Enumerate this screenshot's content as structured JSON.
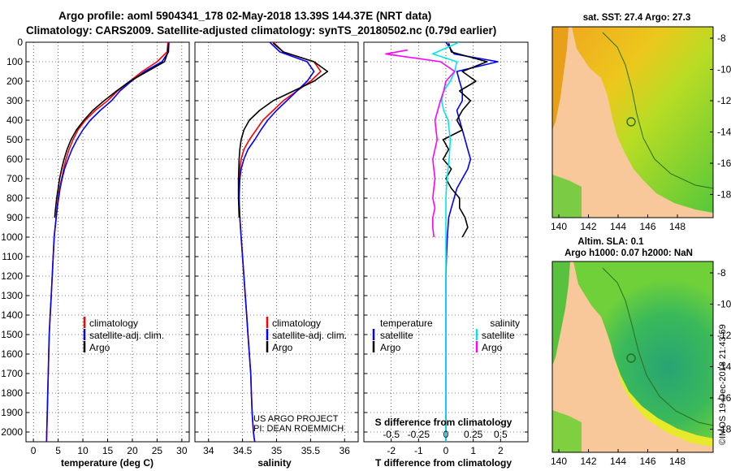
{
  "header": {
    "line1": "Argo profile: aoml 5904341_178 02-May-2018 13.39S 144.37E (NRT data)",
    "line2": "Climatology: CARS2009. Satellite-adjusted climatology: synTS_20180502.nc (0.79d earlier)"
  },
  "credits": {
    "project": "US ARGO PROJECT",
    "pi": "PI: DEAN ROEMMICH",
    "imos": "©IMOS 19-Dec-2018 21:43:59"
  },
  "colors": {
    "climatology": "#ff0000",
    "satellite": "#0000ff",
    "argo": "#000000",
    "sal_satellite": "#00e5ee",
    "sal_argo": "#ff00ff",
    "land": "#f9c89a",
    "coast": "#2a6e1c"
  },
  "depth_axis": {
    "min": 0,
    "max": 2050,
    "ticks": [
      0,
      100,
      200,
      300,
      400,
      500,
      600,
      700,
      800,
      900,
      1000,
      1100,
      1200,
      1300,
      1400,
      1500,
      1600,
      1700,
      1800,
      1900,
      2000
    ]
  },
  "chart_data": [
    {
      "id": "temperature",
      "type": "line",
      "xlabel": "temperature (deg C)",
      "ylabel": "depth",
      "xlim": [
        -1.5,
        31.5
      ],
      "ylim": [
        2050,
        0
      ],
      "xticks": [
        0,
        5,
        10,
        15,
        20,
        25,
        30
      ],
      "legend": [
        "climatology",
        "satellite-adj. clim.",
        "Argo"
      ],
      "legend_position": "bottom-right",
      "series": [
        {
          "name": "climatology",
          "color": "#ff0000",
          "x": [
            27.2,
            27.0,
            25.0,
            22.0,
            19.5,
            17.0,
            15.0,
            12.5,
            10.5,
            9.0,
            8.0,
            7.2,
            6.6,
            6.1,
            5.7,
            5.3,
            5.0,
            4.8,
            4.6,
            4.4,
            4.2,
            4.0,
            3.8,
            3.6,
            3.4,
            3.2,
            3.1,
            3.0,
            2.9,
            2.8,
            2.7,
            2.65
          ],
          "y": [
            0,
            50,
            100,
            150,
            200,
            250,
            300,
            350,
            400,
            450,
            500,
            550,
            600,
            650,
            700,
            750,
            800,
            850,
            900,
            950,
            1000,
            1100,
            1200,
            1300,
            1400,
            1500,
            1600,
            1700,
            1800,
            1900,
            2000,
            2050
          ]
        },
        {
          "name": "satellite-adj. clim.",
          "color": "#0000ff",
          "x": [
            27.4,
            27.3,
            26.0,
            22.5,
            19.8,
            17.5,
            15.8,
            13.5,
            11.5,
            10.0,
            8.8,
            7.8,
            7.0,
            6.3,
            5.8,
            5.4,
            5.1,
            4.8,
            4.6,
            4.4,
            4.2,
            4.0,
            3.8,
            3.6,
            3.4,
            3.2,
            3.1,
            3.0,
            2.9,
            2.8,
            2.7,
            2.65
          ],
          "y": [
            0,
            50,
            100,
            150,
            200,
            250,
            300,
            350,
            400,
            450,
            500,
            550,
            600,
            650,
            700,
            750,
            800,
            850,
            900,
            950,
            1000,
            1100,
            1200,
            1300,
            1400,
            1500,
            1600,
            1700,
            1800,
            1900,
            2000,
            2050
          ]
        },
        {
          "name": "Argo",
          "color": "#000000",
          "x": [
            27.3,
            27.2,
            26.5,
            23.0,
            19.5,
            16.8,
            14.3,
            12.0,
            10.2,
            8.7,
            7.6,
            6.8,
            6.2,
            5.7,
            5.3,
            5.0,
            4.7,
            4.5,
            4.3
          ],
          "y": [
            5,
            50,
            100,
            150,
            200,
            250,
            300,
            350,
            400,
            450,
            500,
            550,
            600,
            650,
            700,
            750,
            800,
            850,
            900
          ]
        }
      ]
    },
    {
      "id": "salinity",
      "type": "line",
      "xlabel": "salinity",
      "ylabel": "depth",
      "xlim": [
        33.8,
        36.2
      ],
      "ylim": [
        2050,
        0
      ],
      "xticks": [
        34,
        34.5,
        35,
        35.5,
        36
      ],
      "xtick_labels": [
        "34",
        "34.5",
        "35",
        "35.5",
        "36"
      ],
      "legend": [
        "climatology",
        "satellite-adj. clim.",
        "Argo"
      ],
      "legend_position": "bottom-right",
      "series": [
        {
          "name": "climatology",
          "color": "#ff0000",
          "x": [
            34.95,
            35.1,
            35.55,
            35.65,
            35.5,
            35.3,
            35.1,
            34.95,
            34.8,
            34.7,
            34.6,
            34.52,
            34.48,
            34.46,
            34.45,
            34.45,
            34.46,
            34.48,
            34.5,
            34.52,
            34.54,
            34.56,
            34.58,
            34.6,
            34.62,
            34.63,
            34.64,
            34.65,
            34.66,
            34.67,
            34.68
          ],
          "y": [
            0,
            50,
            100,
            150,
            200,
            250,
            300,
            350,
            400,
            450,
            500,
            550,
            600,
            650,
            700,
            800,
            900,
            1000,
            1100,
            1200,
            1300,
            1400,
            1500,
            1600,
            1700,
            1800,
            1900,
            1950,
            2000,
            2030,
            2050
          ]
        },
        {
          "name": "satellite-adj. clim.",
          "color": "#0000ff",
          "x": [
            34.9,
            35.05,
            35.45,
            35.55,
            35.45,
            35.3,
            35.15,
            35.0,
            34.87,
            34.77,
            34.68,
            34.58,
            34.52,
            34.48,
            34.46,
            34.45,
            34.46,
            34.48,
            34.5,
            34.52,
            34.54,
            34.56,
            34.58,
            34.6,
            34.62,
            34.63,
            34.64,
            34.65,
            34.66,
            34.67,
            34.68
          ],
          "y": [
            0,
            50,
            100,
            150,
            200,
            250,
            300,
            350,
            400,
            450,
            500,
            550,
            600,
            650,
            700,
            800,
            900,
            1000,
            1100,
            1200,
            1300,
            1400,
            1500,
            1600,
            1700,
            1800,
            1900,
            1950,
            2000,
            2030,
            2050
          ]
        },
        {
          "name": "Argo",
          "color": "#000000",
          "x": [
            34.95,
            35.1,
            35.55,
            35.75,
            35.55,
            35.25,
            34.95,
            34.75,
            34.6,
            34.52,
            34.48,
            34.46,
            34.45,
            34.44,
            34.44,
            34.45
          ],
          "y": [
            5,
            50,
            100,
            150,
            200,
            250,
            300,
            350,
            400,
            450,
            500,
            550,
            600,
            700,
            800,
            900
          ]
        }
      ]
    },
    {
      "id": "difference",
      "type": "line",
      "xlabel": "T difference from climatology",
      "x2label": "S difference from climatology",
      "ylabel": "depth",
      "xlim": [
        -3,
        3
      ],
      "ylim": [
        2050,
        0
      ],
      "xticks": [
        -2,
        -1,
        0,
        1,
        2
      ],
      "x2ticks": [
        -0.5,
        -0.25,
        0,
        0.25,
        0.5
      ],
      "x2tick_labels": [
        "-0.5",
        "-0.25",
        "0",
        "0.25",
        "0.5"
      ],
      "legend_left_title": "temperature",
      "legend_right_title": "salinity",
      "legend_left": [
        "satellite",
        "Argo"
      ],
      "legend_right": [
        "satellite",
        "Argo"
      ],
      "legend_position": "bottom",
      "series": [
        {
          "name": "T satellite",
          "color": "#0000ff",
          "x": [
            0.0,
            0.3,
            1.9,
            0.4,
            0.5,
            0.6,
            0.6,
            0.4,
            0.5,
            0.6,
            0.7,
            0.8,
            0.9,
            0.8,
            0.6,
            0.4,
            0.3,
            0.2,
            0.1,
            0.05,
            0.02,
            0.0,
            0.0
          ],
          "y": [
            0,
            60,
            100,
            150,
            200,
            250,
            300,
            350,
            400,
            450,
            500,
            550,
            600,
            650,
            700,
            750,
            800,
            850,
            900,
            1000,
            1100,
            1200,
            2050
          ]
        },
        {
          "name": "T Argo",
          "color": "#000000",
          "x": [
            0.1,
            0.2,
            1.5,
            0.6,
            1.1,
            0.5,
            0.9,
            0.6,
            0.4,
            0.6,
            -0.1,
            0.1,
            -0.1,
            0.2,
            0.0,
            0.2,
            0.5,
            0.5,
            0.7,
            0.8,
            0.6
          ],
          "y": [
            5,
            50,
            100,
            150,
            200,
            250,
            300,
            350,
            400,
            450,
            500,
            550,
            600,
            650,
            700,
            750,
            800,
            850,
            900,
            950,
            1000
          ]
        },
        {
          "name": "S satellite",
          "color": "#00e5ee",
          "x": [
            0.12,
            -0.12,
            0.1,
            0.08,
            0.04,
            -0.02,
            -0.04,
            -0.02,
            0.02,
            0.04,
            0.03,
            0.01,
            0.0,
            0.0,
            0.0,
            0.0,
            0.0,
            0.0
          ],
          "y": [
            0,
            60,
            100,
            150,
            200,
            250,
            300,
            350,
            400,
            500,
            600,
            700,
            800,
            900,
            1000,
            1200,
            1500,
            2050
          ]
        },
        {
          "name": "S Argo",
          "color": "#ff00ff",
          "x": [
            -0.35,
            -0.55,
            -0.05,
            0.08,
            0.0,
            -0.02,
            -0.05,
            -0.1,
            -0.08,
            -0.12,
            -0.1,
            -0.12,
            -0.1,
            -0.12,
            -0.12,
            -0.11
          ],
          "y": [
            40,
            60,
            100,
            150,
            200,
            250,
            300,
            400,
            500,
            600,
            700,
            800,
            850,
            900,
            950,
            1000
          ]
        }
      ]
    }
  ],
  "maps": {
    "sst": {
      "title": "sat. SST: 27.4 Argo: 27.3",
      "lat_ticks": [
        "-8",
        "-10",
        "-12",
        "-14",
        "-16",
        "-18"
      ],
      "lon_ticks": [
        "140",
        "142",
        "144",
        "146",
        "148"
      ],
      "float_lat": -13.39,
      "float_lon": 144.37
    },
    "sla": {
      "title1": "Altim. SLA: 0.1",
      "title2": "Argo h1000: 0.07 h2000: NaN",
      "lat_ticks": [
        "-8",
        "-10",
        "-12",
        "-14",
        "-16",
        "-18"
      ],
      "lon_ticks": [
        "140",
        "142",
        "144",
        "146",
        "148"
      ],
      "float_lat": -13.39,
      "float_lon": 144.37
    }
  }
}
